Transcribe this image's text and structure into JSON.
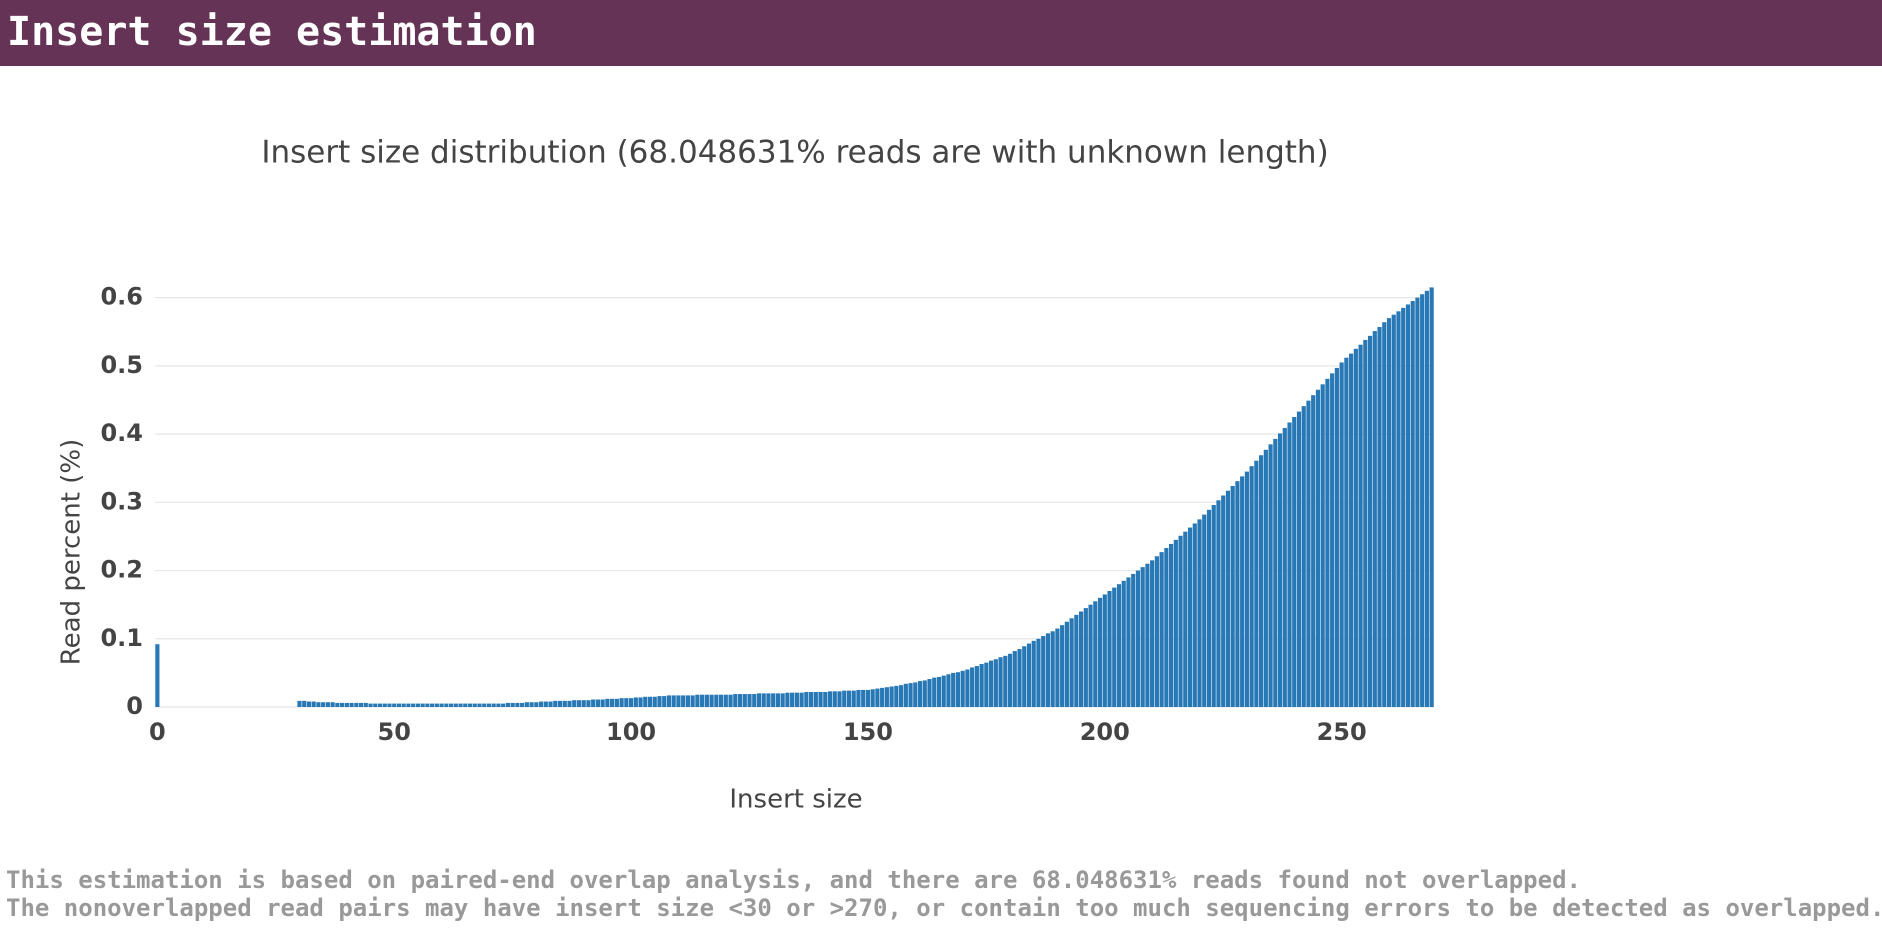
{
  "header": {
    "title": "Insert size estimation"
  },
  "chart_data": {
    "type": "bar",
    "title": "Insert size distribution (68.048631% reads are with unknown length)",
    "xlabel": "Insert size",
    "ylabel": "Read percent (%)",
    "color": "#2878b5",
    "grid": true,
    "xlim": [
      -0.5,
      269.5
    ],
    "xticks": [
      0,
      50,
      100,
      150,
      200,
      250
    ],
    "ylim": [
      0,
      0.62
    ],
    "yticks": [
      0,
      0.1,
      0.2,
      0.3,
      0.4,
      0.5,
      0.6
    ],
    "x": [
      0,
      1,
      2,
      3,
      4,
      5,
      6,
      7,
      8,
      9,
      10,
      11,
      12,
      13,
      14,
      15,
      16,
      17,
      18,
      19,
      20,
      21,
      22,
      23,
      24,
      25,
      26,
      27,
      28,
      29,
      30,
      31,
      32,
      33,
      34,
      35,
      36,
      37,
      38,
      39,
      40,
      41,
      42,
      43,
      44,
      45,
      46,
      47,
      48,
      49,
      50,
      51,
      52,
      53,
      54,
      55,
      56,
      57,
      58,
      59,
      60,
      61,
      62,
      63,
      64,
      65,
      66,
      67,
      68,
      69,
      70,
      71,
      72,
      73,
      74,
      75,
      76,
      77,
      78,
      79,
      80,
      81,
      82,
      83,
      84,
      85,
      86,
      87,
      88,
      89,
      90,
      91,
      92,
      93,
      94,
      95,
      96,
      97,
      98,
      99,
      100,
      101,
      102,
      103,
      104,
      105,
      106,
      107,
      108,
      109,
      110,
      111,
      112,
      113,
      114,
      115,
      116,
      117,
      118,
      119,
      120,
      121,
      122,
      123,
      124,
      125,
      126,
      127,
      128,
      129,
      130,
      131,
      132,
      133,
      134,
      135,
      136,
      137,
      138,
      139,
      140,
      141,
      142,
      143,
      144,
      145,
      146,
      147,
      148,
      149,
      150,
      151,
      152,
      153,
      154,
      155,
      156,
      157,
      158,
      159,
      160,
      161,
      162,
      163,
      164,
      165,
      166,
      167,
      168,
      169,
      170,
      171,
      172,
      173,
      174,
      175,
      176,
      177,
      178,
      179,
      180,
      181,
      182,
      183,
      184,
      185,
      186,
      187,
      188,
      189,
      190,
      191,
      192,
      193,
      194,
      195,
      196,
      197,
      198,
      199,
      200,
      201,
      202,
      203,
      204,
      205,
      206,
      207,
      208,
      209,
      210,
      211,
      212,
      213,
      214,
      215,
      216,
      217,
      218,
      219,
      220,
      221,
      222,
      223,
      224,
      225,
      226,
      227,
      228,
      229,
      230,
      231,
      232,
      233,
      234,
      235,
      236,
      237,
      238,
      239,
      240,
      241,
      242,
      243,
      244,
      245,
      246,
      247,
      248,
      249,
      250,
      251,
      252,
      253,
      254,
      255,
      256,
      257,
      258,
      259,
      260,
      261,
      262,
      263,
      264,
      265,
      266,
      267,
      268,
      269
    ],
    "values": [
      0.092,
      0,
      0,
      0,
      0,
      0,
      0,
      0,
      0,
      0,
      0,
      0,
      0,
      0,
      0,
      0,
      0,
      0,
      0,
      0,
      0,
      0,
      0,
      0,
      0,
      0,
      0,
      0,
      0,
      0,
      0.009,
      0.009,
      0.008,
      0.008,
      0.007,
      0.007,
      0.007,
      0.007,
      0.006,
      0.006,
      0.006,
      0.006,
      0.006,
      0.006,
      0.006,
      0.005,
      0.005,
      0.005,
      0.005,
      0.005,
      0.005,
      0.005,
      0.005,
      0.005,
      0.005,
      0.005,
      0.005,
      0.005,
      0.005,
      0.005,
      0.005,
      0.005,
      0.005,
      0.005,
      0.005,
      0.005,
      0.005,
      0.005,
      0.005,
      0.005,
      0.005,
      0.005,
      0.005,
      0.005,
      0.006,
      0.006,
      0.006,
      0.006,
      0.007,
      0.007,
      0.007,
      0.008,
      0.008,
      0.008,
      0.009,
      0.009,
      0.009,
      0.009,
      0.01,
      0.01,
      0.01,
      0.01,
      0.011,
      0.011,
      0.011,
      0.012,
      0.012,
      0.012,
      0.013,
      0.013,
      0.013,
      0.014,
      0.014,
      0.015,
      0.015,
      0.015,
      0.016,
      0.016,
      0.017,
      0.017,
      0.017,
      0.017,
      0.017,
      0.017,
      0.018,
      0.018,
      0.018,
      0.018,
      0.018,
      0.018,
      0.018,
      0.018,
      0.019,
      0.019,
      0.019,
      0.019,
      0.019,
      0.02,
      0.02,
      0.02,
      0.02,
      0.02,
      0.02,
      0.021,
      0.021,
      0.021,
      0.021,
      0.022,
      0.022,
      0.022,
      0.022,
      0.022,
      0.023,
      0.023,
      0.023,
      0.024,
      0.024,
      0.024,
      0.025,
      0.025,
      0.025,
      0.026,
      0.027,
      0.028,
      0.029,
      0.03,
      0.031,
      0.032,
      0.034,
      0.035,
      0.036,
      0.038,
      0.039,
      0.041,
      0.043,
      0.044,
      0.046,
      0.048,
      0.05,
      0.051,
      0.053,
      0.055,
      0.058,
      0.06,
      0.063,
      0.065,
      0.068,
      0.07,
      0.073,
      0.075,
      0.078,
      0.082,
      0.085,
      0.089,
      0.093,
      0.097,
      0.1,
      0.104,
      0.108,
      0.111,
      0.115,
      0.12,
      0.125,
      0.13,
      0.135,
      0.14,
      0.145,
      0.15,
      0.155,
      0.16,
      0.165,
      0.17,
      0.175,
      0.18,
      0.185,
      0.19,
      0.195,
      0.2,
      0.205,
      0.21,
      0.215,
      0.221,
      0.227,
      0.233,
      0.239,
      0.245,
      0.251,
      0.257,
      0.263,
      0.269,
      0.275,
      0.282,
      0.289,
      0.296,
      0.303,
      0.31,
      0.317,
      0.324,
      0.331,
      0.338,
      0.345,
      0.353,
      0.361,
      0.369,
      0.377,
      0.385,
      0.393,
      0.401,
      0.409,
      0.417,
      0.425,
      0.433,
      0.441,
      0.449,
      0.457,
      0.465,
      0.473,
      0.481,
      0.489,
      0.497,
      0.505,
      0.512,
      0.518,
      0.525,
      0.531,
      0.538,
      0.544,
      0.551,
      0.557,
      0.564,
      0.57,
      0.575,
      0.58,
      0.585,
      0.59,
      0.595,
      0.6,
      0.605,
      0.61,
      0.615
    ]
  },
  "footer": [
    "This estimation is based on paired-end overlap analysis, and there are 68.048631% reads found not overlapped.",
    "The nonoverlapped read pairs may have insert size <30 or >270, or contain too much sequencing errors to be detected as overlapped."
  ]
}
